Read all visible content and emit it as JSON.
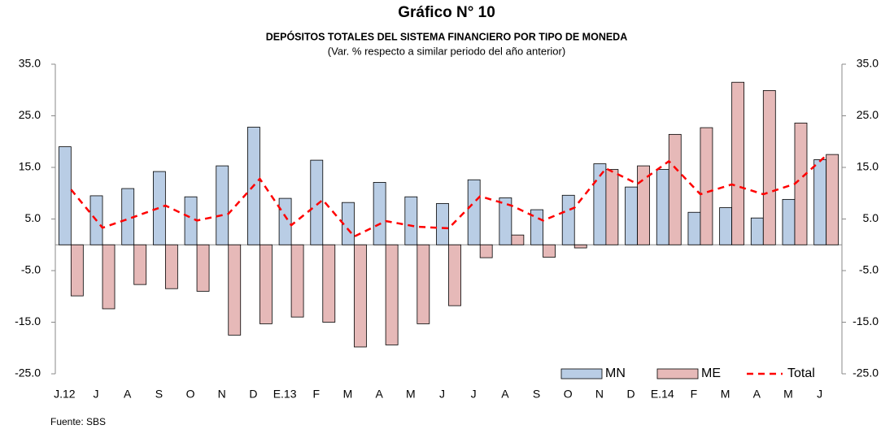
{
  "chart_data": {
    "type": "bar",
    "title": "Gráfico N° 10",
    "subtitle": "DEPÓSITOS TOTALES  DEL SISTEMA FINANCIERO POR TIPO DE MONEDA",
    "note": "(Var. % respecto a similar periodo del año anterior)",
    "source": "Fuente: SBS",
    "categories": [
      "J.12",
      "J",
      "A",
      "S",
      "O",
      "N",
      "D",
      "E.13",
      "F",
      "M",
      "A",
      "M",
      "J",
      "J",
      "A",
      "S",
      "O",
      "N",
      "D",
      "E.14",
      "F",
      "M",
      "A",
      "M",
      "J"
    ],
    "series": [
      {
        "name": "MN",
        "type": "bar",
        "color": "#b9cde5",
        "values": [
          19.0,
          9.5,
          10.9,
          14.2,
          9.3,
          15.3,
          22.8,
          9.0,
          16.4,
          8.2,
          12.1,
          9.3,
          8.0,
          12.6,
          9.1,
          6.8,
          9.6,
          15.7,
          11.2,
          14.6,
          6.3,
          7.2,
          5.2,
          8.8,
          16.5
        ]
      },
      {
        "name": "ME",
        "type": "bar",
        "color": "#e6b9b8",
        "values": [
          -9.9,
          -12.4,
          -7.7,
          -8.5,
          -9.0,
          -17.5,
          -15.3,
          -14.0,
          -15.0,
          -19.8,
          -19.4,
          -15.3,
          -11.8,
          -2.5,
          1.9,
          -2.4,
          -0.6,
          14.6,
          15.3,
          21.4,
          22.7,
          31.5,
          29.9,
          23.6,
          17.5
        ]
      },
      {
        "name": "Total",
        "type": "line",
        "color": "#ff0000",
        "values": [
          10.7,
          3.3,
          5.4,
          7.6,
          4.7,
          6.0,
          12.8,
          3.8,
          8.7,
          1.6,
          4.6,
          3.5,
          3.2,
          9.4,
          7.6,
          4.7,
          7.2,
          14.8,
          11.8,
          16.2,
          9.8,
          11.7,
          9.8,
          11.8,
          17.3
        ]
      }
    ],
    "ylim": [
      -25,
      35
    ],
    "yticks": [
      {
        "value": 35,
        "label": "35.0"
      },
      {
        "value": 25,
        "label": "25.0"
      },
      {
        "value": 15,
        "label": "15.0"
      },
      {
        "value": 5,
        "label": "5.0"
      },
      {
        "value": -5,
        "label": "-5.0"
      },
      {
        "value": -15,
        "label": "-15.0"
      },
      {
        "value": -25,
        "label": "-25.0"
      }
    ],
    "y2lim": [
      -25,
      35
    ],
    "y2ticks": [
      {
        "value": 35,
        "label": "35.0"
      },
      {
        "value": 25,
        "label": "25.0"
      },
      {
        "value": 15,
        "label": "15.0"
      },
      {
        "value": 5,
        "label": "5.0"
      },
      {
        "value": -5,
        "label": "-5.0"
      },
      {
        "value": -15,
        "label": "-15.0"
      },
      {
        "value": -25,
        "label": "-25.0"
      }
    ],
    "grid": false,
    "legend": "bottom-right"
  }
}
